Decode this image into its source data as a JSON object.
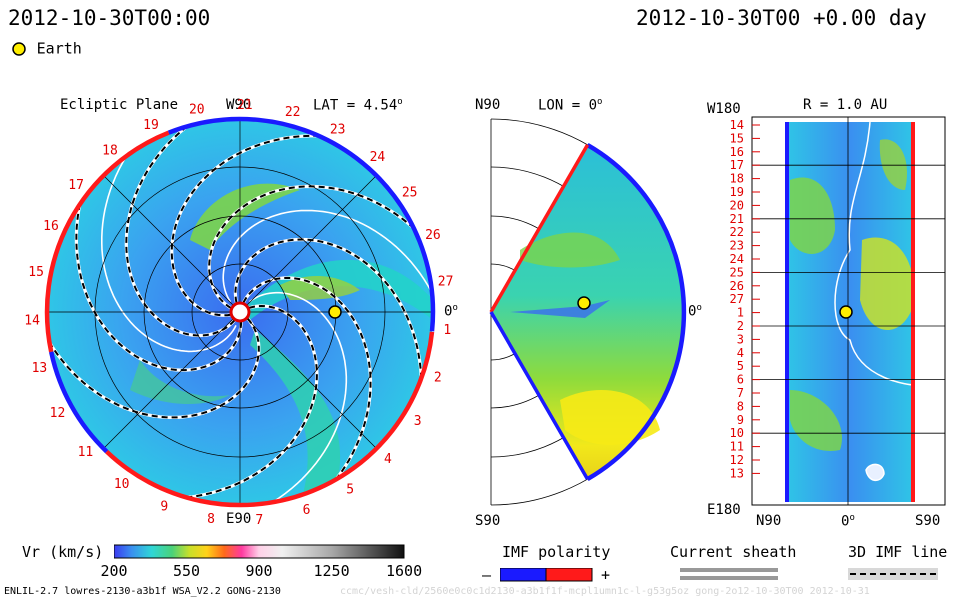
{
  "header": {
    "date_left": "2012-10-30T00:00",
    "date_right": "2012-10-30T00 +0.00 day",
    "legend_earth": "Earth"
  },
  "panels": {
    "ecliptic": {
      "title": "Ecliptic Plane",
      "lat_label": "LAT = 4.54",
      "lat_deg": "o",
      "top_label": "W90",
      "bottom_label": "E90",
      "right_label": "0",
      "right_deg": "o",
      "sectors": [
        "1",
        "2",
        "3",
        "4",
        "5",
        "6",
        "7",
        "8",
        "9",
        "10",
        "11",
        "12",
        "13",
        "14",
        "15",
        "16",
        "17",
        "18",
        "19",
        "20",
        "21",
        "22",
        "23",
        "24",
        "25",
        "26",
        "27"
      ]
    },
    "meridional": {
      "title": "LON = 0",
      "title_deg": "o",
      "top_label": "N90",
      "bottom_label": "S90",
      "right_label": "0",
      "right_deg": "o"
    },
    "radial": {
      "title": "R = 1.0 AU",
      "top_left": "W180",
      "bottom_left": "E180",
      "bottom_n": "N90",
      "bottom_zero": "0",
      "bottom_zero_deg": "o",
      "bottom_s": "S90",
      "rows": [
        "14",
        "15",
        "16",
        "17",
        "18",
        "19",
        "20",
        "21",
        "22",
        "23",
        "24",
        "25",
        "26",
        "27",
        "1",
        "2",
        "3",
        "4",
        "5",
        "6",
        "7",
        "8",
        "9",
        "10",
        "11",
        "12",
        "13"
      ]
    }
  },
  "colorbar": {
    "label": "Vr (km/s)",
    "ticks": [
      "200",
      "550",
      "900",
      "1250",
      "1600"
    ],
    "tick_values": [
      200,
      550,
      900,
      1250,
      1600
    ],
    "min": 200,
    "max": 1600
  },
  "legend": {
    "imf_title": "IMF polarity",
    "imf_minus": "–",
    "imf_plus": "+",
    "sheath_title": "Current sheath",
    "imf3d_title": "3D IMF line"
  },
  "footer": {
    "model": "ENLIL-2.7 lowres-2130-a3b1f WSA_V2.2 GONG-2130",
    "watermark": "ccmc/vesh-cld/2560e0c0c1d2130-a3b1f1f-mcpl1umn1c-l-g53g5oz gong-2o12-10-30T00 2012-10-31"
  },
  "colors": {
    "positive": "#ff1a1a",
    "negative": "#1a1aff",
    "earth": "#ffee00",
    "sheath": "#ffffff"
  }
}
